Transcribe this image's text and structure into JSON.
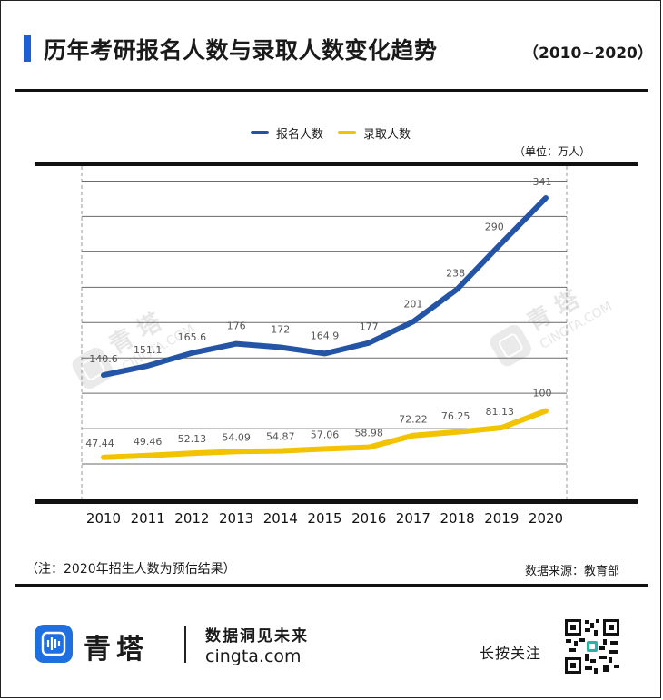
{
  "header": {
    "title": "历年考研报名人数与录取人数变化趋势",
    "subtitle": "（2010~2020）"
  },
  "legend": {
    "items": [
      {
        "label": "报名人数",
        "color": "#2454a6"
      },
      {
        "label": "录取人数",
        "color": "#f2c300"
      }
    ]
  },
  "unit_label": "（单位：万人）",
  "watermark": {
    "brand": "青 塔",
    "domain": "CINGTA.COM"
  },
  "chart_data": {
    "type": "line",
    "x": [
      "2010",
      "2011",
      "2012",
      "2013",
      "2014",
      "2015",
      "2016",
      "2017",
      "2018",
      "2019",
      "2020"
    ],
    "series": [
      {
        "name": "报名人数",
        "color": "#2454a6",
        "values": [
          140.6,
          151.1,
          165.6,
          176,
          172,
          164.9,
          177,
          201,
          238,
          290,
          341
        ],
        "labels": [
          "140.6",
          "151.1",
          "165.6",
          "176",
          "172",
          "164.9",
          "177",
          "201",
          "238",
          "290",
          "341"
        ]
      },
      {
        "name": "录取人数",
        "color": "#f2c300",
        "values": [
          47.44,
          49.46,
          52.13,
          54.09,
          54.87,
          57.06,
          58.98,
          72.22,
          76.25,
          81.13,
          100
        ],
        "labels": [
          "47.44",
          "49.46",
          "52.13",
          "54.09",
          "54.87",
          "57.06",
          "58.98",
          "72.22",
          "76.25",
          "81.13",
          "100"
        ]
      }
    ],
    "ylim": [
      0,
      380
    ],
    "grid": true,
    "legend_position": "top-center"
  },
  "footer": {
    "note": "（注：2020年招生人数为预估结果）",
    "source": "数据来源：教育部",
    "brand_name": "青塔",
    "slogan": "数据洞见未来",
    "website": "cingta.com",
    "follow_text": "长按关注"
  }
}
